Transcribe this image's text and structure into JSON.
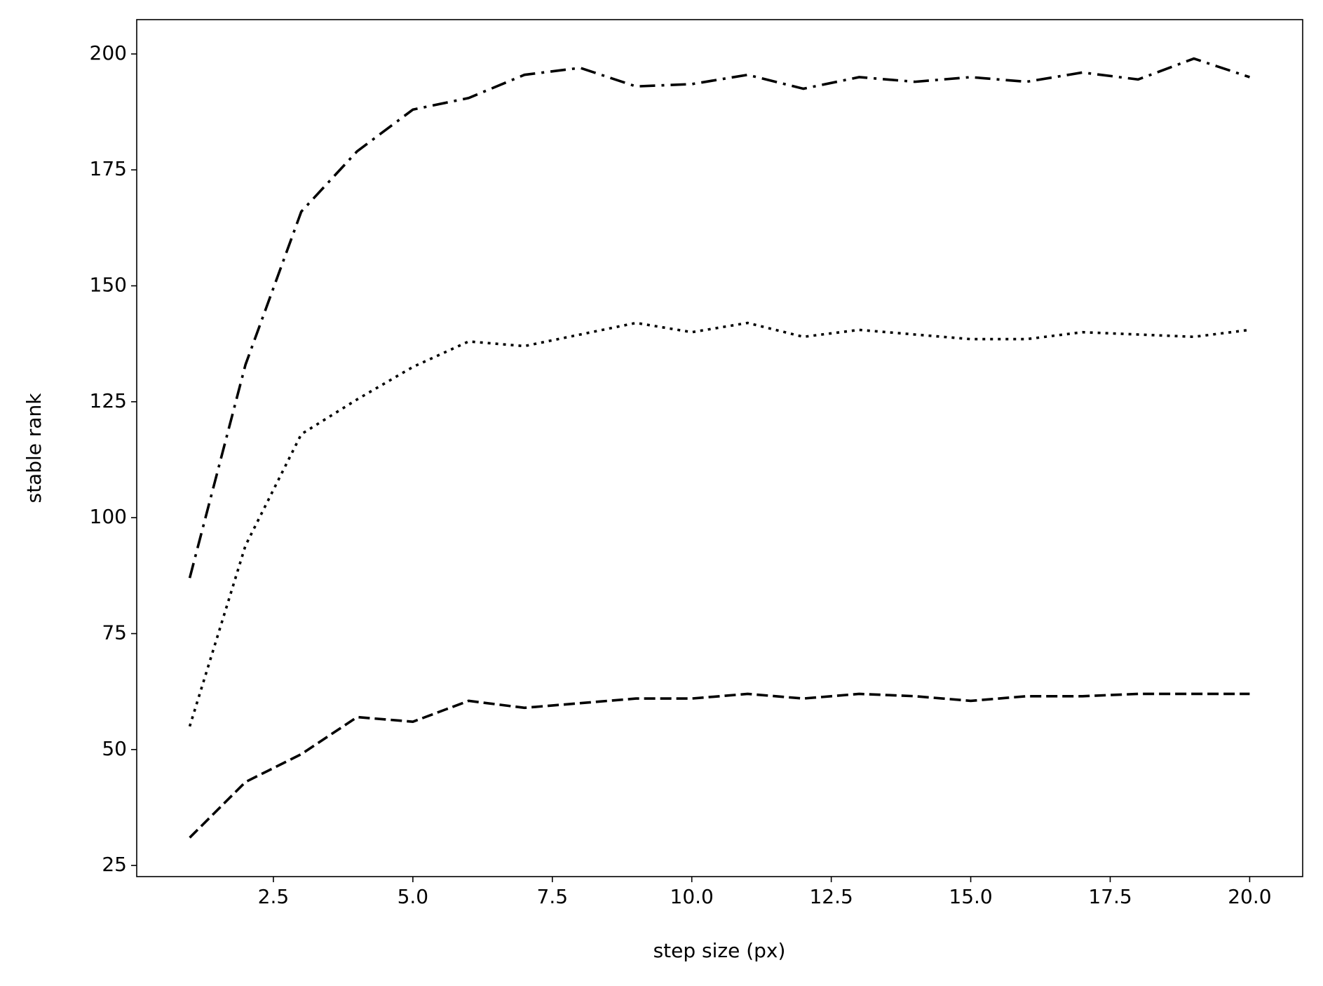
{
  "chart_data": {
    "type": "line",
    "xlabel": "step size (px)",
    "ylabel": "stable rank",
    "x": [
      1,
      2,
      3,
      4,
      5,
      6,
      7,
      8,
      9,
      10,
      11,
      12,
      13,
      14,
      15,
      16,
      17,
      18,
      19,
      20
    ],
    "series": [
      {
        "color": "#000000",
        "linestyle": "dashdot",
        "values": [
          87,
          133,
          166,
          179,
          188,
          190.5,
          195.5,
          197,
          193,
          193.5,
          195.5,
          192.5,
          195,
          194,
          195,
          194,
          196,
          194.5,
          199,
          195
        ]
      },
      {
        "color": "#000000",
        "linestyle": "dotted",
        "values": [
          55,
          94,
          118,
          125.5,
          132.5,
          138,
          137,
          139.5,
          142,
          140,
          142,
          139,
          140.5,
          139.5,
          138.5,
          138.5,
          140,
          139.5,
          139,
          140.5
        ]
      },
      {
        "color": "#000000",
        "linestyle": "dashed",
        "values": [
          31,
          43,
          49,
          57,
          56,
          60.5,
          59,
          60,
          61,
          61,
          62,
          61,
          62,
          61.5,
          60.5,
          61.5,
          61.5,
          62,
          62,
          62
        ]
      }
    ],
    "xlim": [
      0.05,
      20.95
    ],
    "xticks": [
      2.5,
      {
        "value": 5,
        "label": "5.0"
      },
      7.5,
      {
        "value": 10,
        "label": "10.0"
      },
      12.5,
      {
        "value": 15,
        "label": "15.0"
      },
      17.5,
      {
        "value": 20,
        "label": "20.0"
      }
    ],
    "ylim": [
      22.6,
      207.4
    ],
    "yticks": [
      25,
      50,
      75,
      100,
      125,
      150,
      175,
      200
    ],
    "grid": false
  }
}
